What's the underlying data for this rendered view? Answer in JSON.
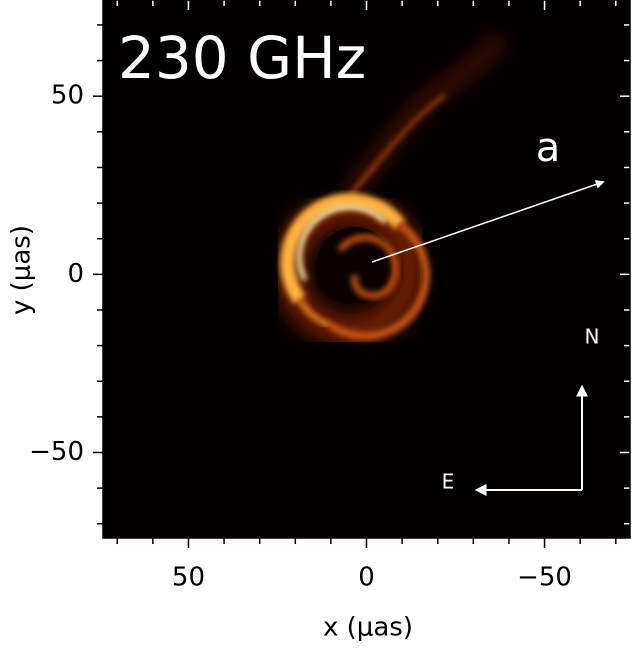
{
  "chart_data": {
    "type": "image",
    "title": "230 GHz",
    "xlabel": "x (μas)",
    "ylabel": "y (μas)",
    "annotations": {
      "spin": "a",
      "north": "N",
      "east": "E"
    },
    "xlim": [
      74,
      -74
    ],
    "ylim": [
      -74,
      77
    ],
    "xticks": [
      50,
      0,
      {
        "value": -50,
        "label": "−50"
      }
    ],
    "yticks": [
      50,
      0,
      {
        "value": -50,
        "label": "−50"
      }
    ],
    "xminorticks": [
      70,
      60,
      40,
      30,
      20,
      10,
      -10,
      -20,
      -30,
      -40,
      -60,
      -70
    ],
    "yminorticks": [
      70,
      60,
      40,
      30,
      20,
      10,
      -10,
      -20,
      -30,
      -40,
      -60,
      -70
    ]
  }
}
